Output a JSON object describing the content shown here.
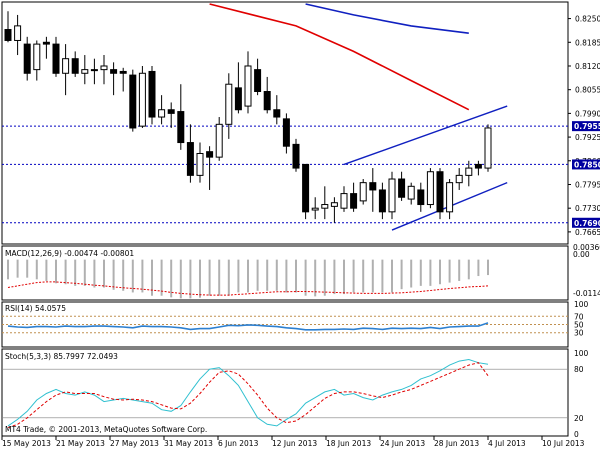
{
  "colors": {
    "bull": "#ffffff",
    "bear": "#000000",
    "ma_fast": "#e00000",
    "ma_slow": "#1020c0",
    "channel": "#1020c0",
    "hline": "#0000c0",
    "macd_hist": "#b0b0b0",
    "macd_signal": "#e00000",
    "rsi_line": "#2c7fd0",
    "stoch_main": "#30c0d0",
    "stoch_signal": "#e00000",
    "level_label_bg": "#0000a0",
    "level_line": "#c09050"
  },
  "chart_data": [
    {
      "type": "candlestick",
      "name": "price",
      "ylim": [
        0.764,
        0.829
      ],
      "y_ticks": [
        "0.8250",
        "0.8185",
        "0.8120",
        "0.8055",
        "0.7990",
        "0.7925",
        "0.7860",
        "0.7795",
        "0.7730",
        "0.7665"
      ],
      "y_tick_values": [
        0.825,
        0.8185,
        0.812,
        0.8055,
        0.799,
        0.7925,
        0.786,
        0.7795,
        0.773,
        0.7665
      ],
      "x_labels": [
        "15 May 2013",
        "21 May 2013",
        "27 May 2013",
        "31 May 2013",
        "6 Jun 2013",
        "12 Jun 2013",
        "18 Jun 2013",
        "24 Jun 2013",
        "28 Jun 2013",
        "4 Jul 2013",
        "10 Jul 2013"
      ],
      "candles": [
        {
          "o": 0.822,
          "h": 0.827,
          "l": 0.8185,
          "c": 0.819
        },
        {
          "o": 0.819,
          "h": 0.826,
          "l": 0.815,
          "c": 0.823
        },
        {
          "o": 0.818,
          "h": 0.82,
          "l": 0.808,
          "c": 0.81
        },
        {
          "o": 0.811,
          "h": 0.819,
          "l": 0.808,
          "c": 0.818
        },
        {
          "o": 0.8185,
          "h": 0.82,
          "l": 0.814,
          "c": 0.818
        },
        {
          "o": 0.818,
          "h": 0.82,
          "l": 0.809,
          "c": 0.81
        },
        {
          "o": 0.81,
          "h": 0.818,
          "l": 0.804,
          "c": 0.814
        },
        {
          "o": 0.814,
          "h": 0.816,
          "l": 0.809,
          "c": 0.81
        },
        {
          "o": 0.81,
          "h": 0.815,
          "l": 0.807,
          "c": 0.811
        },
        {
          "o": 0.811,
          "h": 0.814,
          "l": 0.807,
          "c": 0.811
        },
        {
          "o": 0.811,
          "h": 0.815,
          "l": 0.807,
          "c": 0.812
        },
        {
          "o": 0.811,
          "h": 0.813,
          "l": 0.804,
          "c": 0.81
        },
        {
          "o": 0.8105,
          "h": 0.8115,
          "l": 0.805,
          "c": 0.81
        },
        {
          "o": 0.8095,
          "h": 0.811,
          "l": 0.794,
          "c": 0.795
        },
        {
          "o": 0.7955,
          "h": 0.812,
          "l": 0.795,
          "c": 0.81
        },
        {
          "o": 0.8105,
          "h": 0.812,
          "l": 0.796,
          "c": 0.798
        },
        {
          "o": 0.798,
          "h": 0.804,
          "l": 0.796,
          "c": 0.8
        },
        {
          "o": 0.8,
          "h": 0.802,
          "l": 0.795,
          "c": 0.799
        },
        {
          "o": 0.7995,
          "h": 0.807,
          "l": 0.789,
          "c": 0.791
        },
        {
          "o": 0.791,
          "h": 0.796,
          "l": 0.78,
          "c": 0.782
        },
        {
          "o": 0.782,
          "h": 0.791,
          "l": 0.78,
          "c": 0.788
        },
        {
          "o": 0.7885,
          "h": 0.79,
          "l": 0.778,
          "c": 0.787
        },
        {
          "o": 0.787,
          "h": 0.798,
          "l": 0.786,
          "c": 0.796
        },
        {
          "o": 0.796,
          "h": 0.81,
          "l": 0.792,
          "c": 0.807
        },
        {
          "o": 0.806,
          "h": 0.813,
          "l": 0.799,
          "c": 0.8
        },
        {
          "o": 0.801,
          "h": 0.816,
          "l": 0.799,
          "c": 0.812
        },
        {
          "o": 0.811,
          "h": 0.814,
          "l": 0.804,
          "c": 0.805
        },
        {
          "o": 0.805,
          "h": 0.809,
          "l": 0.799,
          "c": 0.8
        },
        {
          "o": 0.8,
          "h": 0.804,
          "l": 0.796,
          "c": 0.798
        },
        {
          "o": 0.7975,
          "h": 0.799,
          "l": 0.788,
          "c": 0.79
        },
        {
          "o": 0.7905,
          "h": 0.792,
          "l": 0.783,
          "c": 0.784
        },
        {
          "o": 0.785,
          "h": 0.785,
          "l": 0.77,
          "c": 0.772
        },
        {
          "o": 0.7725,
          "h": 0.776,
          "l": 0.77,
          "c": 0.773
        },
        {
          "o": 0.773,
          "h": 0.779,
          "l": 0.77,
          "c": 0.774
        },
        {
          "o": 0.7735,
          "h": 0.776,
          "l": 0.769,
          "c": 0.7745
        },
        {
          "o": 0.773,
          "h": 0.779,
          "l": 0.772,
          "c": 0.777
        },
        {
          "o": 0.777,
          "h": 0.78,
          "l": 0.772,
          "c": 0.773
        },
        {
          "o": 0.775,
          "h": 0.781,
          "l": 0.774,
          "c": 0.78
        },
        {
          "o": 0.78,
          "h": 0.784,
          "l": 0.772,
          "c": 0.778
        },
        {
          "o": 0.778,
          "h": 0.78,
          "l": 0.77,
          "c": 0.772
        },
        {
          "o": 0.772,
          "h": 0.783,
          "l": 0.77,
          "c": 0.781
        },
        {
          "o": 0.781,
          "h": 0.783,
          "l": 0.775,
          "c": 0.776
        },
        {
          "o": 0.7755,
          "h": 0.78,
          "l": 0.774,
          "c": 0.779
        },
        {
          "o": 0.778,
          "h": 0.78,
          "l": 0.772,
          "c": 0.774
        },
        {
          "o": 0.774,
          "h": 0.784,
          "l": 0.773,
          "c": 0.783
        },
        {
          "o": 0.783,
          "h": 0.784,
          "l": 0.77,
          "c": 0.772
        },
        {
          "o": 0.772,
          "h": 0.781,
          "l": 0.77,
          "c": 0.78
        },
        {
          "o": 0.78,
          "h": 0.784,
          "l": 0.778,
          "c": 0.782
        },
        {
          "o": 0.782,
          "h": 0.786,
          "l": 0.779,
          "c": 0.784
        },
        {
          "o": 0.785,
          "h": 0.786,
          "l": 0.782,
          "c": 0.784
        },
        {
          "o": 0.784,
          "h": 0.796,
          "l": 0.783,
          "c": 0.795
        }
      ],
      "moving_averages": [
        {
          "color_key": "ma_fast",
          "points": [
            [
              21,
              0.829
            ],
            [
              30,
              0.823
            ],
            [
              36,
              0.816
            ],
            [
              42,
              0.808
            ],
            [
              48,
              0.8
            ]
          ]
        },
        {
          "color_key": "ma_slow",
          "points": [
            [
              31,
              0.829
            ],
            [
              36,
              0.826
            ],
            [
              42,
              0.823
            ],
            [
              48,
              0.821
            ]
          ]
        }
      ],
      "channel_lines": [
        {
          "from": [
            35,
            0.785
          ],
          "to": [
            52,
            0.801
          ]
        },
        {
          "from": [
            40,
            0.767
          ],
          "to": [
            52,
            0.78
          ]
        }
      ],
      "horizontal_levels": [
        {
          "value": 0.7955,
          "label": "0.7955"
        },
        {
          "value": 0.785,
          "label": "0.7850"
        },
        {
          "value": 0.769,
          "label": "0.7690"
        }
      ],
      "scale_tops": [
        "0.8290"
      ]
    },
    {
      "type": "bar",
      "name": "MACD",
      "title": "MACD(12,26,9) -0.00474 -0.00801",
      "ylim": [
        -0.012,
        0.0005
      ],
      "y_ticks": [
        "0.00360",
        "0.00",
        "-0.01145"
      ],
      "histogram": [
        -0.006,
        -0.0055,
        -0.0055,
        -0.006,
        -0.0065,
        -0.0072,
        -0.0075,
        -0.008,
        -0.008,
        -0.0085,
        -0.0085,
        -0.0092,
        -0.0095,
        -0.01,
        -0.01,
        -0.011,
        -0.011,
        -0.0115,
        -0.0118,
        -0.0118,
        -0.0116,
        -0.011,
        -0.011,
        -0.011,
        -0.01,
        -0.01,
        -0.0095,
        -0.0095,
        -0.0095,
        -0.01,
        -0.01,
        -0.011,
        -0.0112,
        -0.011,
        -0.0105,
        -0.0105,
        -0.01,
        -0.01,
        -0.01,
        -0.01,
        -0.01,
        -0.009,
        -0.0085,
        -0.008,
        -0.008,
        -0.0075,
        -0.007,
        -0.0065,
        -0.006,
        -0.005,
        -0.0047
      ],
      "signal": [
        -0.0085,
        -0.008,
        -0.0075,
        -0.007,
        -0.0068,
        -0.0068,
        -0.007,
        -0.0072,
        -0.0075,
        -0.0078,
        -0.008,
        -0.0083,
        -0.0086,
        -0.0088,
        -0.009,
        -0.0093,
        -0.0096,
        -0.01,
        -0.0103,
        -0.0105,
        -0.0107,
        -0.0108,
        -0.0108,
        -0.0108,
        -0.0106,
        -0.0104,
        -0.0102,
        -0.01,
        -0.0098,
        -0.0098,
        -0.0097,
        -0.0097,
        -0.0098,
        -0.0099,
        -0.01,
        -0.0101,
        -0.0102,
        -0.0103,
        -0.0103,
        -0.0103,
        -0.0102,
        -0.0101,
        -0.0099,
        -0.0097,
        -0.0094,
        -0.0091,
        -0.0088,
        -0.0086,
        -0.0083,
        -0.0082,
        -0.008
      ]
    },
    {
      "type": "line",
      "name": "RSI",
      "title": "RSI(14) 54.0575",
      "ylim": [
        0,
        100
      ],
      "y_ticks": [
        "100",
        "70",
        "50",
        "30",
        "0"
      ],
      "y_tick_values": [
        100,
        70,
        50,
        30,
        0
      ],
      "levels": [
        70,
        50,
        30
      ],
      "values": [
        46,
        44,
        43,
        45,
        45,
        44,
        46,
        45,
        45,
        46,
        46,
        45,
        44,
        42,
        46,
        45,
        45,
        44,
        42,
        38,
        40,
        40,
        44,
        48,
        47,
        49,
        48,
        46,
        45,
        42,
        40,
        37,
        37,
        38,
        38,
        39,
        38,
        41,
        40,
        38,
        41,
        40,
        41,
        40,
        43,
        40,
        44,
        45,
        46,
        46,
        54
      ]
    },
    {
      "type": "line",
      "name": "Stochastic",
      "title": "Stoch(5,3,3) 85.7997 72.0493",
      "ylim": [
        0,
        100
      ],
      "y_ticks": [
        "100",
        "80",
        "20",
        "0"
      ],
      "y_tick_values": [
        100,
        80,
        20,
        0
      ],
      "levels": [
        80,
        20
      ],
      "main": [
        10,
        18,
        28,
        42,
        50,
        55,
        50,
        48,
        52,
        48,
        40,
        42,
        44,
        42,
        40,
        38,
        30,
        28,
        35,
        52,
        68,
        80,
        82,
        72,
        60,
        40,
        20,
        12,
        10,
        18,
        25,
        38,
        45,
        52,
        55,
        48,
        50,
        45,
        42,
        48,
        52,
        55,
        60,
        68,
        72,
        78,
        85,
        90,
        92,
        88,
        86
      ],
      "signal": [
        8,
        12,
        20,
        30,
        40,
        48,
        52,
        50,
        50,
        50,
        46,
        43,
        42,
        43,
        42,
        40,
        36,
        32,
        31,
        38,
        50,
        64,
        76,
        78,
        74,
        62,
        48,
        32,
        20,
        14,
        16,
        24,
        34,
        44,
        50,
        52,
        52,
        50,
        47,
        45,
        48,
        52,
        55,
        60,
        65,
        70,
        75,
        80,
        85,
        88,
        72
      ]
    }
  ],
  "footer": {
    "copyright": "MT4 Trade, © 2001-2013, MetaQuotes Software Corp."
  }
}
